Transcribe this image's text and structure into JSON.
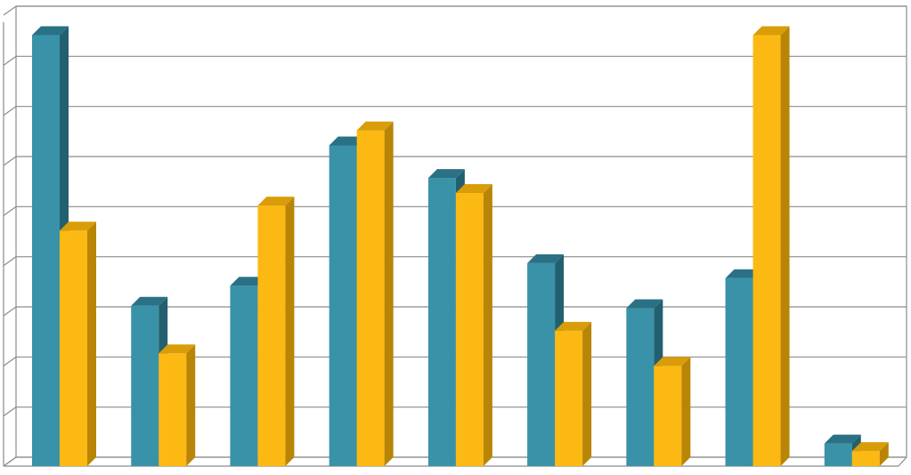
{
  "chart_data": {
    "type": "bar",
    "style": "3d-clustered-column",
    "title": "",
    "xlabel": "",
    "ylabel": "",
    "categories": [
      "",
      "",
      "",
      "",
      "",
      "",
      "",
      "",
      ""
    ],
    "series": [
      {
        "values": [
          8.6,
          3.2,
          3.6,
          6.4,
          5.75,
          4.05,
          3.15,
          3.75,
          0.45
        ]
      },
      {
        "values": [
          4.7,
          2.25,
          5.2,
          6.7,
          5.45,
          2.7,
          2.0,
          8.6,
          0.3
        ]
      }
    ],
    "ylim": [
      0,
      9
    ],
    "grid": true,
    "legend": "none",
    "colors": {
      "series_front": [
        "#3A92A8",
        "#FDB913"
      ],
      "series_side": [
        "#23606F",
        "#B88506"
      ],
      "series_top": [
        "#2A7186",
        "#D99D09"
      ],
      "grid": "#8C8C8C",
      "background": "#FFFFFF"
    }
  }
}
